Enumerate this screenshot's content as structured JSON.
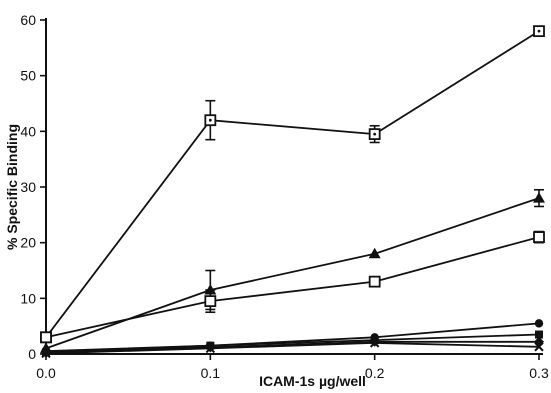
{
  "chart_data": {
    "type": "line",
    "xlabel": "ICAM-1s µg/well",
    "ylabel": "% Specific Binding",
    "xlim": [
      0.0,
      0.3
    ],
    "ylim": [
      0,
      60
    ],
    "x_ticks": [
      "0.0",
      "0.1",
      "0.2",
      "0.3"
    ],
    "y_ticks": [
      "0",
      "10",
      "20",
      "30",
      "40",
      "50",
      "60"
    ],
    "x": [
      0.0,
      0.1,
      0.2,
      0.3
    ],
    "grid": false,
    "series": [
      {
        "marker": "open-square-dot",
        "values": [
          3,
          42,
          39.5,
          58
        ],
        "error": [
          0,
          3.5,
          1.5,
          0
        ]
      },
      {
        "marker": "filled-triangle",
        "values": [
          1,
          11.5,
          18,
          28
        ],
        "error": [
          0,
          3.5,
          0,
          1.5
        ]
      },
      {
        "marker": "open-square",
        "values": [
          3,
          9.5,
          13,
          21
        ],
        "error": [
          0,
          2,
          0,
          1
        ]
      },
      {
        "marker": "filled-circle",
        "values": [
          0.5,
          1.5,
          3,
          5.5
        ],
        "error": [
          0,
          0,
          0,
          0
        ]
      },
      {
        "marker": "filled-square",
        "values": [
          0.3,
          1.5,
          2.5,
          3.5
        ],
        "error": [
          0,
          0,
          0,
          0
        ]
      },
      {
        "marker": "filled-diamond",
        "values": [
          0.2,
          1.2,
          2.2,
          2.2
        ],
        "error": [
          0,
          0,
          0,
          0
        ]
      },
      {
        "marker": "x-cross",
        "values": [
          0.1,
          1,
          2,
          1.3
        ],
        "error": [
          0,
          0,
          0,
          0
        ]
      }
    ]
  }
}
